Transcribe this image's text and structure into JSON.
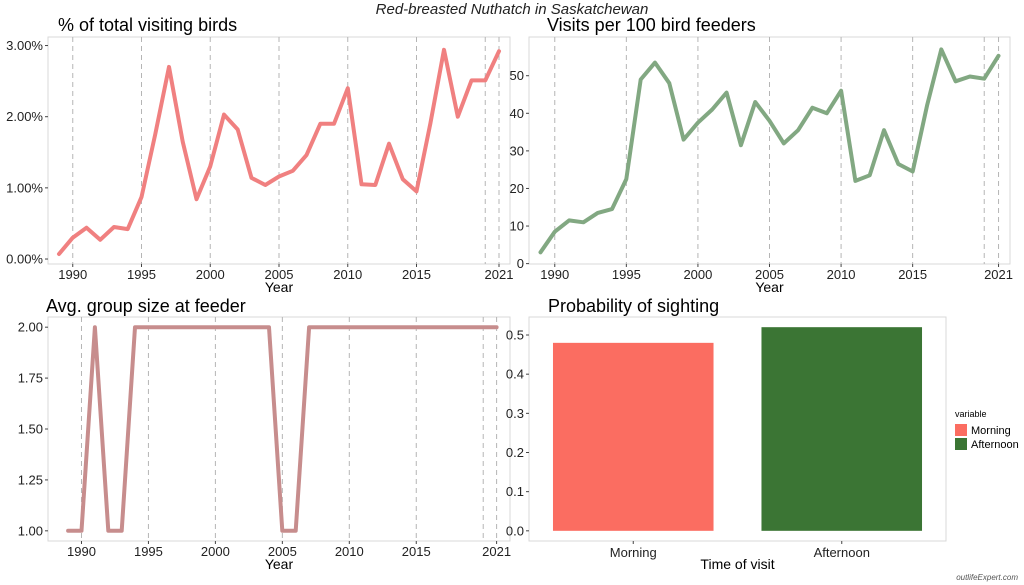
{
  "main_title": "Red-breasted Nuthatch in Saskatchewan",
  "watermark": "outlifeExpert.com",
  "colors": {
    "pct": "#f08080",
    "visits": "#82a882",
    "group": "#c78d8d",
    "morning": "#fb6d61",
    "afternoon": "#3b7534"
  },
  "chart_data": [
    {
      "type": "line",
      "title": "% of total visiting birds",
      "xlabel": "Year",
      "ylabel": "",
      "x": [
        1989,
        1990,
        1991,
        1992,
        1993,
        1994,
        1995,
        1996,
        1997,
        1998,
        1999,
        2000,
        2001,
        2002,
        2003,
        2004,
        2005,
        2006,
        2007,
        2008,
        2009,
        2010,
        2011,
        2012,
        2013,
        2014,
        2015,
        2016,
        2017,
        2018,
        2019,
        2020,
        2021
      ],
      "series": [
        {
          "values": [
            0.07,
            0.3,
            0.44,
            0.27,
            0.45,
            0.42,
            0.87,
            1.75,
            2.7,
            1.65,
            0.84,
            1.3,
            2.03,
            1.82,
            1.14,
            1.04,
            1.16,
            1.24,
            1.46,
            1.9,
            1.9,
            2.4,
            1.05,
            1.04,
            1.62,
            1.12,
            0.95,
            1.9,
            2.94,
            2.0,
            2.51,
            2.51,
            2.92
          ]
        }
      ],
      "xticks": [
        1990,
        1995,
        2000,
        2005,
        2010,
        2015,
        2021
      ],
      "yticks": [
        0,
        1,
        2,
        3
      ],
      "ytick_labels": [
        "0.00%",
        "1.00%",
        "2.00%",
        "3.00%"
      ],
      "xlim": [
        1988.2,
        2021.8
      ],
      "ylim": [
        -0.07,
        3.12
      ],
      "grid": "vertical dashed"
    },
    {
      "type": "line",
      "title": "Visits per 100 bird feeders",
      "xlabel": "Year",
      "ylabel": "",
      "x": [
        1989,
        1990,
        1991,
        1992,
        1993,
        1994,
        1995,
        1996,
        1997,
        1998,
        1999,
        2000,
        2001,
        2002,
        2003,
        2004,
        2005,
        2006,
        2007,
        2008,
        2009,
        2010,
        2011,
        2012,
        2013,
        2014,
        2015,
        2016,
        2017,
        2018,
        2019,
        2020,
        2021
      ],
      "series": [
        {
          "values": [
            3,
            8.5,
            11.5,
            11,
            13.5,
            14.5,
            22.5,
            49,
            53.5,
            48,
            33,
            37.5,
            41,
            45.5,
            31.5,
            43,
            38,
            32,
            35.5,
            41.5,
            40,
            46,
            22,
            23.5,
            35.5,
            26.5,
            24.5,
            42,
            57,
            48.5,
            49.8,
            49.2,
            55.3
          ]
        }
      ],
      "xticks": [
        1990,
        1995,
        2000,
        2005,
        2010,
        2015,
        2021
      ],
      "yticks": [
        0,
        10,
        20,
        30,
        40,
        50
      ],
      "ytick_labels": [
        "0",
        "10",
        "20",
        "30",
        "40",
        "50"
      ],
      "xlim": [
        1988.2,
        2021.8
      ],
      "ylim": [
        -0.1,
        60.3
      ],
      "grid": "vertical dashed"
    },
    {
      "type": "line",
      "title": "Avg. group size at feeder",
      "xlabel": "Year",
      "ylabel": "",
      "x": [
        1989,
        1990,
        1991,
        1992,
        1993,
        1994,
        1995,
        1996,
        1997,
        1998,
        1999,
        2000,
        2001,
        2002,
        2003,
        2004,
        2005,
        2006,
        2007,
        2008,
        2009,
        2010,
        2011,
        2012,
        2013,
        2014,
        2015,
        2016,
        2017,
        2018,
        2019,
        2020,
        2021
      ],
      "series": [
        {
          "values": [
            1,
            1,
            2,
            1,
            1,
            2,
            2,
            2,
            2,
            2,
            2,
            2,
            2,
            2,
            2,
            2,
            1,
            1,
            2,
            2,
            2,
            2,
            2,
            2,
            2,
            2,
            2,
            2,
            2,
            2,
            2,
            2,
            2
          ]
        }
      ],
      "xticks": [
        1990,
        1995,
        2000,
        2005,
        2010,
        2015,
        2021
      ],
      "yticks": [
        1,
        1.25,
        1.5,
        1.75,
        2
      ],
      "ytick_labels": [
        "1.00",
        "1.25",
        "1.50",
        "1.75",
        "2.00"
      ],
      "xlim": [
        1987.5,
        2022
      ],
      "ylim": [
        0.95,
        2.05
      ],
      "grid": "vertical dashed"
    },
    {
      "type": "bar",
      "title": "Probability of sighting",
      "xlabel": "Time of visit",
      "ylabel": "",
      "categories": [
        "Morning",
        "Afternoon"
      ],
      "values": [
        0.48,
        0.52
      ],
      "yticks": [
        0,
        0.1,
        0.2,
        0.3,
        0.4,
        0.5
      ],
      "ytick_labels": [
        "0.0",
        "0.1",
        "0.2",
        "0.3",
        "0.4",
        "0.5"
      ],
      "ylim": [
        -0.026,
        0.546
      ],
      "legend": {
        "title": "variable",
        "entries": [
          "Morning",
          "Afternoon"
        ],
        "position": "right"
      }
    }
  ]
}
